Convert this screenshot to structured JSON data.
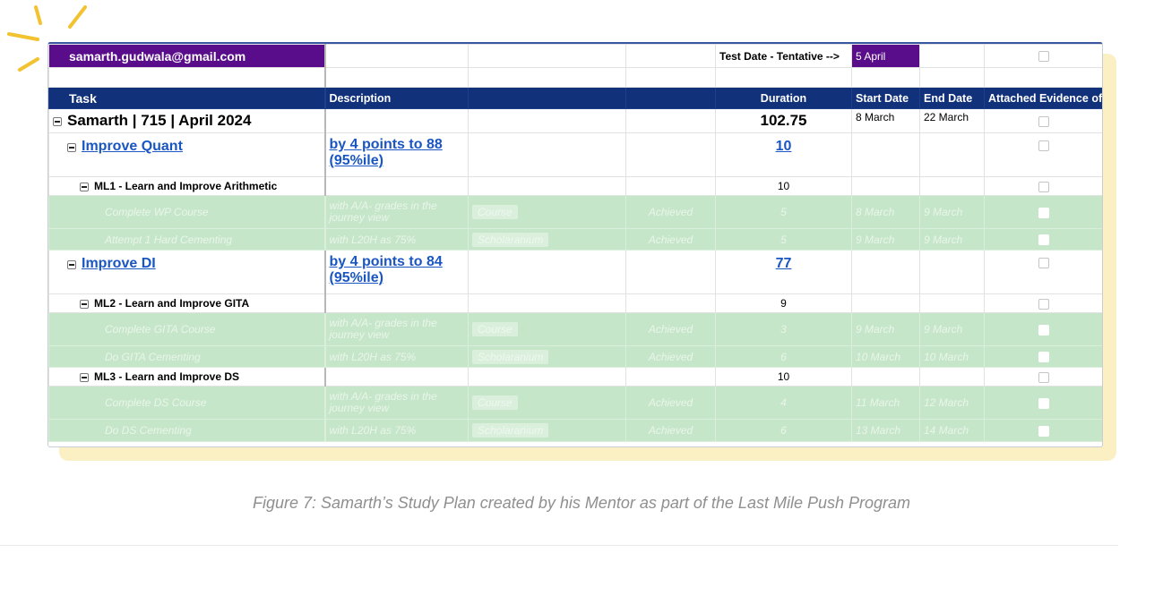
{
  "header": {
    "email": "samarth.gudwala@gmail.com",
    "test_date_label": "Test Date - Tentative -->",
    "test_date_value": "5 April"
  },
  "columns": {
    "task": "Task",
    "description": "Description",
    "duration": "Duration",
    "start_date": "Start Date",
    "end_date": "End Date",
    "evidence": "Attached Evidence of"
  },
  "rows": {
    "root": {
      "task": "Samarth | 715 | April 2024",
      "duration": "102.75",
      "start": "8 March",
      "end": "22 March"
    },
    "quant": {
      "task": "Improve Quant",
      "description": "by 4 points to 88 (95%ile)",
      "duration": "10"
    },
    "ml1": {
      "task": "ML1 - Learn and Improve Arithmetic",
      "duration": "10"
    },
    "ml1_t1": {
      "task": "Complete WP Course",
      "description": "with A/A- grades in the journey view",
      "chip": "Course",
      "status": "Achieved",
      "duration": "5",
      "start": "8 March",
      "end": "9 March"
    },
    "ml1_t2": {
      "task": "Attempt 1 Hard Cementing",
      "description": "with L20H as 75%",
      "chip": "Scholaranium",
      "status": "Achieved",
      "duration": "5",
      "start": "9 March",
      "end": "9 March"
    },
    "di": {
      "task": "Improve DI",
      "description": "by 4 points to 84 (95%ile)",
      "duration": "77"
    },
    "ml2": {
      "task": "ML2 - Learn and Improve GITA",
      "duration": "9"
    },
    "ml2_t1": {
      "task": "Complete GITA Course",
      "description": "with A/A- grades in the journey view",
      "chip": "Course",
      "status": "Achieved",
      "duration": "3",
      "start": "9 March",
      "end": "9 March"
    },
    "ml2_t2": {
      "task": "Do GITA Cementing",
      "description": "with L20H as 75%",
      "chip": "Scholaranium",
      "status": "Achieved",
      "duration": "6",
      "start": "10 March",
      "end": "10 March"
    },
    "ml3": {
      "task": "ML3 - Learn and Improve DS",
      "duration": "10"
    },
    "ml3_t1": {
      "task": "Complete DS Course",
      "description": "with A/A- grades in the journey view",
      "chip": "Course",
      "status": "Achieved",
      "duration": "4",
      "start": "11 March",
      "end": "12 March"
    },
    "ml3_t2": {
      "task": "Do DS Cementing",
      "description": "with L20H as 75%",
      "chip": "Scholaranium",
      "status": "Achieved",
      "duration": "6",
      "start": "13 March",
      "end": "14 March"
    }
  },
  "caption": "Figure 7: Samarth’s Study Plan created by his Mentor as part of the Last Mile Push Program"
}
